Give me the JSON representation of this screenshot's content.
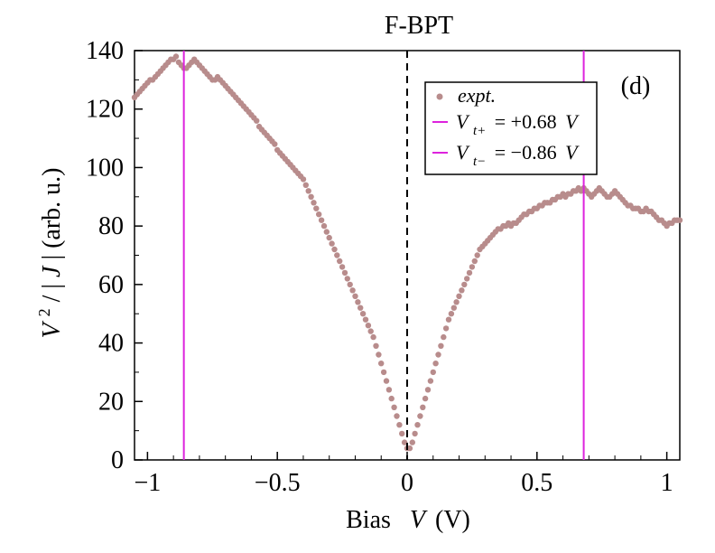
{
  "chart_data": {
    "type": "scatter",
    "title": "F-BPT",
    "panel_label": "(d)",
    "xlabel": "Bias",
    "xlabel_var": "V",
    "xlabel_unit": "(V)",
    "ylabel": "V² / |J| (arb. u.)",
    "ylabel_parts": {
      "v": "V",
      "sup": "2",
      "slash": " / |",
      "j": "J",
      "tail": "| (arb. u.)"
    },
    "xlim": [
      -1.05,
      1.05
    ],
    "ylim": [
      0,
      140
    ],
    "xticks": [
      -1,
      -0.5,
      0,
      0.5,
      1
    ],
    "xtick_labels": [
      "−1",
      "−0.5",
      "0",
      "0.5",
      "1"
    ],
    "yticks": [
      0,
      20,
      40,
      60,
      80,
      100,
      120,
      140
    ],
    "ytick_labels": [
      "0",
      "20",
      "40",
      "60",
      "80",
      "100",
      "120",
      "140"
    ],
    "colors": {
      "expt": "#b88c8c",
      "transition": "#dd22dd",
      "zero_line": "#000000"
    },
    "legend": {
      "position": "top-right",
      "entries": [
        {
          "label": "expt.",
          "kind": "marker"
        },
        {
          "label": "V",
          "sub": "t+",
          "value": "= +0.68",
          "unit": "V",
          "kind": "line"
        },
        {
          "label": "V",
          "sub": "t−",
          "value": "= −0.86",
          "unit": "V",
          "kind": "line"
        }
      ]
    },
    "transition_lines": [
      {
        "name": "Vt+",
        "x": 0.68
      },
      {
        "name": "Vt-",
        "x": -0.86
      }
    ],
    "zero_line_x": 0,
    "series": [
      {
        "name": "expt.",
        "points": [
          [
            -1.05,
            124
          ],
          [
            -1.04,
            125
          ],
          [
            -1.03,
            126
          ],
          [
            -1.02,
            127
          ],
          [
            -1.01,
            128
          ],
          [
            -1.0,
            129
          ],
          [
            -0.99,
            130
          ],
          [
            -0.98,
            130
          ],
          [
            -0.97,
            131
          ],
          [
            -0.96,
            132
          ],
          [
            -0.95,
            133
          ],
          [
            -0.94,
            134
          ],
          [
            -0.93,
            135
          ],
          [
            -0.92,
            136
          ],
          [
            -0.91,
            137
          ],
          [
            -0.9,
            137
          ],
          [
            -0.89,
            138
          ],
          [
            -0.88,
            136
          ],
          [
            -0.87,
            135
          ],
          [
            -0.86,
            134
          ],
          [
            -0.85,
            134
          ],
          [
            -0.84,
            135
          ],
          [
            -0.83,
            136
          ],
          [
            -0.82,
            137
          ],
          [
            -0.81,
            136
          ],
          [
            -0.8,
            135
          ],
          [
            -0.79,
            134
          ],
          [
            -0.78,
            133
          ],
          [
            -0.77,
            132
          ],
          [
            -0.76,
            131
          ],
          [
            -0.75,
            130
          ],
          [
            -0.74,
            130
          ],
          [
            -0.73,
            131
          ],
          [
            -0.72,
            130
          ],
          [
            -0.71,
            129
          ],
          [
            -0.7,
            128
          ],
          [
            -0.69,
            127
          ],
          [
            -0.68,
            126
          ],
          [
            -0.67,
            125
          ],
          [
            -0.66,
            124
          ],
          [
            -0.65,
            123
          ],
          [
            -0.64,
            122
          ],
          [
            -0.63,
            121
          ],
          [
            -0.62,
            120
          ],
          [
            -0.61,
            119
          ],
          [
            -0.6,
            118
          ],
          [
            -0.59,
            117
          ],
          [
            -0.58,
            116
          ],
          [
            -0.57,
            114
          ],
          [
            -0.56,
            113
          ],
          [
            -0.55,
            112
          ],
          [
            -0.54,
            111
          ],
          [
            -0.53,
            110
          ],
          [
            -0.52,
            109
          ],
          [
            -0.51,
            108
          ],
          [
            -0.5,
            106
          ],
          [
            -0.49,
            105
          ],
          [
            -0.48,
            104
          ],
          [
            -0.47,
            103
          ],
          [
            -0.46,
            102
          ],
          [
            -0.45,
            101
          ],
          [
            -0.44,
            100
          ],
          [
            -0.43,
            99
          ],
          [
            -0.42,
            98
          ],
          [
            -0.41,
            97
          ],
          [
            -0.4,
            96
          ],
          [
            -0.39,
            94
          ],
          [
            -0.38,
            92
          ],
          [
            -0.37,
            90
          ],
          [
            -0.36,
            88
          ],
          [
            -0.35,
            86
          ],
          [
            -0.34,
            84
          ],
          [
            -0.33,
            82
          ],
          [
            -0.32,
            80
          ],
          [
            -0.31,
            78
          ],
          [
            -0.3,
            76
          ],
          [
            -0.29,
            74
          ],
          [
            -0.28,
            72
          ],
          [
            -0.27,
            70
          ],
          [
            -0.26,
            68
          ],
          [
            -0.25,
            66
          ],
          [
            -0.24,
            64
          ],
          [
            -0.23,
            62
          ],
          [
            -0.22,
            60
          ],
          [
            -0.21,
            58
          ],
          [
            -0.2,
            56
          ],
          [
            -0.19,
            54
          ],
          [
            -0.18,
            52
          ],
          [
            -0.17,
            50
          ],
          [
            -0.16,
            48
          ],
          [
            -0.15,
            46
          ],
          [
            -0.14,
            44
          ],
          [
            -0.13,
            42
          ],
          [
            -0.12,
            39
          ],
          [
            -0.11,
            36
          ],
          [
            -0.1,
            33
          ],
          [
            -0.09,
            30
          ],
          [
            -0.08,
            27
          ],
          [
            -0.07,
            24
          ],
          [
            -0.06,
            21
          ],
          [
            -0.05,
            18
          ],
          [
            -0.04,
            15
          ],
          [
            -0.03,
            12
          ],
          [
            -0.02,
            9
          ],
          [
            -0.01,
            6
          ],
          [
            0.0,
            4
          ],
          [
            0.01,
            4
          ],
          [
            0.02,
            6
          ],
          [
            0.03,
            9
          ],
          [
            0.04,
            12
          ],
          [
            0.05,
            15
          ],
          [
            0.06,
            18
          ],
          [
            0.07,
            21
          ],
          [
            0.08,
            24
          ],
          [
            0.09,
            27
          ],
          [
            0.1,
            30
          ],
          [
            0.11,
            33
          ],
          [
            0.12,
            36
          ],
          [
            0.13,
            39
          ],
          [
            0.14,
            42
          ],
          [
            0.15,
            45
          ],
          [
            0.16,
            48
          ],
          [
            0.17,
            50
          ],
          [
            0.18,
            52
          ],
          [
            0.19,
            54
          ],
          [
            0.2,
            56
          ],
          [
            0.21,
            58
          ],
          [
            0.22,
            60
          ],
          [
            0.23,
            62
          ],
          [
            0.24,
            64
          ],
          [
            0.25,
            66
          ],
          [
            0.26,
            68
          ],
          [
            0.27,
            70
          ],
          [
            0.28,
            72
          ],
          [
            0.29,
            73
          ],
          [
            0.3,
            74
          ],
          [
            0.31,
            75
          ],
          [
            0.32,
            76
          ],
          [
            0.33,
            77
          ],
          [
            0.34,
            78
          ],
          [
            0.35,
            79
          ],
          [
            0.36,
            79
          ],
          [
            0.37,
            80
          ],
          [
            0.38,
            80
          ],
          [
            0.39,
            81
          ],
          [
            0.4,
            80
          ],
          [
            0.41,
            81
          ],
          [
            0.42,
            81
          ],
          [
            0.43,
            82
          ],
          [
            0.44,
            83
          ],
          [
            0.45,
            84
          ],
          [
            0.46,
            84
          ],
          [
            0.47,
            85
          ],
          [
            0.48,
            85
          ],
          [
            0.49,
            86
          ],
          [
            0.5,
            86
          ],
          [
            0.51,
            87
          ],
          [
            0.52,
            87
          ],
          [
            0.53,
            88
          ],
          [
            0.54,
            88
          ],
          [
            0.55,
            88
          ],
          [
            0.56,
            89
          ],
          [
            0.57,
            89
          ],
          [
            0.58,
            90
          ],
          [
            0.59,
            90
          ],
          [
            0.6,
            91
          ],
          [
            0.61,
            90
          ],
          [
            0.62,
            91
          ],
          [
            0.63,
            91
          ],
          [
            0.64,
            92
          ],
          [
            0.65,
            92
          ],
          [
            0.66,
            93
          ],
          [
            0.67,
            92
          ],
          [
            0.68,
            93
          ],
          [
            0.69,
            92
          ],
          [
            0.7,
            91
          ],
          [
            0.71,
            90
          ],
          [
            0.72,
            91
          ],
          [
            0.73,
            92
          ],
          [
            0.74,
            93
          ],
          [
            0.75,
            92
          ],
          [
            0.76,
            91
          ],
          [
            0.77,
            90
          ],
          [
            0.78,
            90
          ],
          [
            0.79,
            91
          ],
          [
            0.8,
            92
          ],
          [
            0.81,
            91
          ],
          [
            0.82,
            90
          ],
          [
            0.83,
            89
          ],
          [
            0.84,
            88
          ],
          [
            0.85,
            87
          ],
          [
            0.86,
            87
          ],
          [
            0.87,
            86
          ],
          [
            0.88,
            86
          ],
          [
            0.89,
            86
          ],
          [
            0.9,
            85
          ],
          [
            0.91,
            85
          ],
          [
            0.92,
            86
          ],
          [
            0.93,
            85
          ],
          [
            0.94,
            85
          ],
          [
            0.95,
            84
          ],
          [
            0.96,
            83
          ],
          [
            0.97,
            82
          ],
          [
            0.98,
            82
          ],
          [
            0.99,
            81
          ],
          [
            1.0,
            80
          ],
          [
            1.01,
            81
          ],
          [
            1.02,
            81
          ],
          [
            1.03,
            82
          ],
          [
            1.04,
            82
          ],
          [
            1.05,
            82
          ]
        ]
      }
    ]
  }
}
